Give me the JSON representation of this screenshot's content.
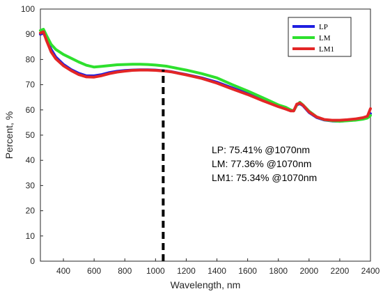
{
  "chart_data": {
    "type": "line",
    "xlabel": "Wavelength, nm",
    "ylabel": "Percent, %",
    "xlim": [
      250,
      2400
    ],
    "ylim": [
      0,
      100
    ],
    "x_ticks": [
      400,
      600,
      800,
      1000,
      1200,
      1400,
      1600,
      1800,
      2000,
      2200,
      2400
    ],
    "y_ticks": [
      0,
      10,
      20,
      30,
      40,
      50,
      60,
      70,
      80,
      90,
      100
    ],
    "grid": false,
    "legend_position": "top-right",
    "series": [
      {
        "name": "LP",
        "color": "#1f1fe0",
        "x": [
          250,
          270,
          290,
          320,
          350,
          400,
          450,
          500,
          550,
          600,
          650,
          700,
          750,
          800,
          850,
          900,
          950,
          1000,
          1070,
          1100,
          1200,
          1300,
          1400,
          1500,
          1600,
          1700,
          1800,
          1850,
          1880,
          1900,
          1920,
          1940,
          1960,
          2000,
          2050,
          2100,
          2150,
          2200,
          2250,
          2300,
          2350,
          2380,
          2400
        ],
        "y": [
          90,
          90.5,
          88,
          84,
          81,
          78,
          76,
          74.5,
          73.5,
          73.5,
          74,
          74.8,
          75.3,
          75.6,
          75.8,
          75.9,
          75.9,
          75.8,
          75.41,
          75.2,
          74,
          72.7,
          71,
          68.7,
          66.5,
          64,
          61.8,
          60.5,
          59.8,
          59.7,
          62,
          62.5,
          61.7,
          59,
          57,
          56,
          55.6,
          55.5,
          55.8,
          56,
          56.5,
          57,
          58.5
        ]
      },
      {
        "name": "LM",
        "color": "#2ee02e",
        "x": [
          250,
          270,
          290,
          320,
          350,
          400,
          450,
          500,
          550,
          600,
          650,
          700,
          750,
          800,
          850,
          900,
          950,
          1000,
          1070,
          1100,
          1200,
          1300,
          1400,
          1500,
          1600,
          1700,
          1800,
          1850,
          1880,
          1900,
          1920,
          1940,
          1960,
          2000,
          2050,
          2100,
          2150,
          2200,
          2250,
          2300,
          2350,
          2380,
          2400
        ],
        "y": [
          91.5,
          92,
          89.5,
          86,
          84,
          82,
          80.5,
          79,
          77.7,
          77,
          77.3,
          77.6,
          77.9,
          78,
          78.1,
          78.1,
          78,
          77.8,
          77.36,
          77,
          75.8,
          74.4,
          72.7,
          70,
          67.5,
          64.8,
          62,
          61,
          60,
          59.6,
          62,
          63,
          62,
          59.5,
          57.2,
          56.1,
          55.7,
          55.5,
          55.7,
          55.9,
          56.3,
          56.8,
          57.8
        ]
      },
      {
        "name": "LM1",
        "color": "#e32626",
        "x": [
          250,
          270,
          290,
          320,
          350,
          400,
          450,
          500,
          550,
          600,
          650,
          700,
          750,
          800,
          850,
          900,
          950,
          1000,
          1070,
          1100,
          1200,
          1300,
          1400,
          1500,
          1600,
          1700,
          1800,
          1850,
          1880,
          1900,
          1920,
          1940,
          1960,
          2000,
          2050,
          2100,
          2150,
          2200,
          2250,
          2300,
          2350,
          2380,
          2400
        ],
        "y": [
          90.5,
          91,
          87.5,
          83,
          80.3,
          77.5,
          75.6,
          74,
          73.1,
          73,
          73.6,
          74.4,
          75,
          75.4,
          75.7,
          75.8,
          75.8,
          75.7,
          75.34,
          75.1,
          73.9,
          72.5,
          70.6,
          68.3,
          66.1,
          63.6,
          61.3,
          60.3,
          59.6,
          59.6,
          62.3,
          62.7,
          61.9,
          59.2,
          57.2,
          56.2,
          55.9,
          55.9,
          56.1,
          56.4,
          56.9,
          57.5,
          60.5
        ]
      }
    ],
    "marker_line": {
      "x": 1050,
      "y_top": 76,
      "color": "#000000"
    },
    "annotations": [
      "LP: 75.41% @1070nm",
      "LM: 77.36% @1070nm",
      "LM1: 75.34% @1070nm"
    ]
  }
}
